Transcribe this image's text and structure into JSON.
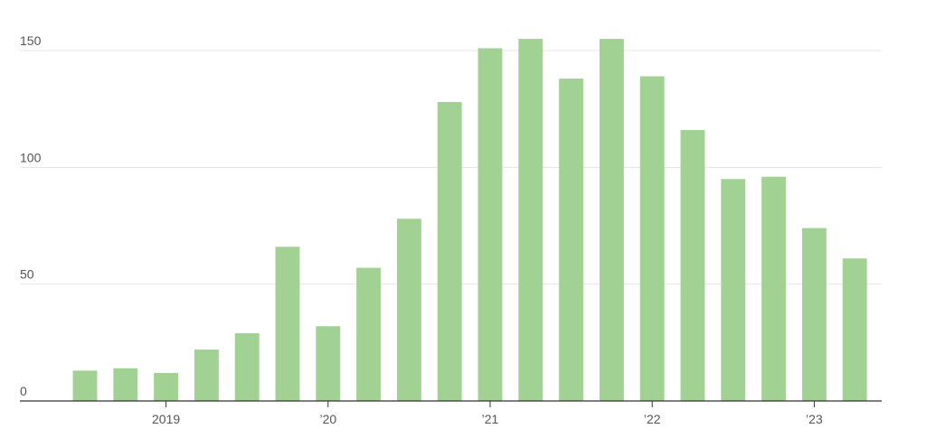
{
  "chart_data": {
    "type": "bar",
    "categories": [
      null,
      null,
      "2019",
      null,
      null,
      null,
      "’20",
      null,
      null,
      null,
      "’21",
      null,
      null,
      null,
      "’22",
      null,
      null,
      null,
      "’23",
      null
    ],
    "values": [
      13,
      14,
      12,
      22,
      29,
      66,
      32,
      57,
      78,
      128,
      151,
      155,
      138,
      155,
      139,
      116,
      95,
      96,
      74,
      61
    ],
    "color": "#a1d193",
    "ylim": [
      0,
      150
    ],
    "yticks": [
      0,
      50,
      100,
      150
    ],
    "grid": true
  }
}
